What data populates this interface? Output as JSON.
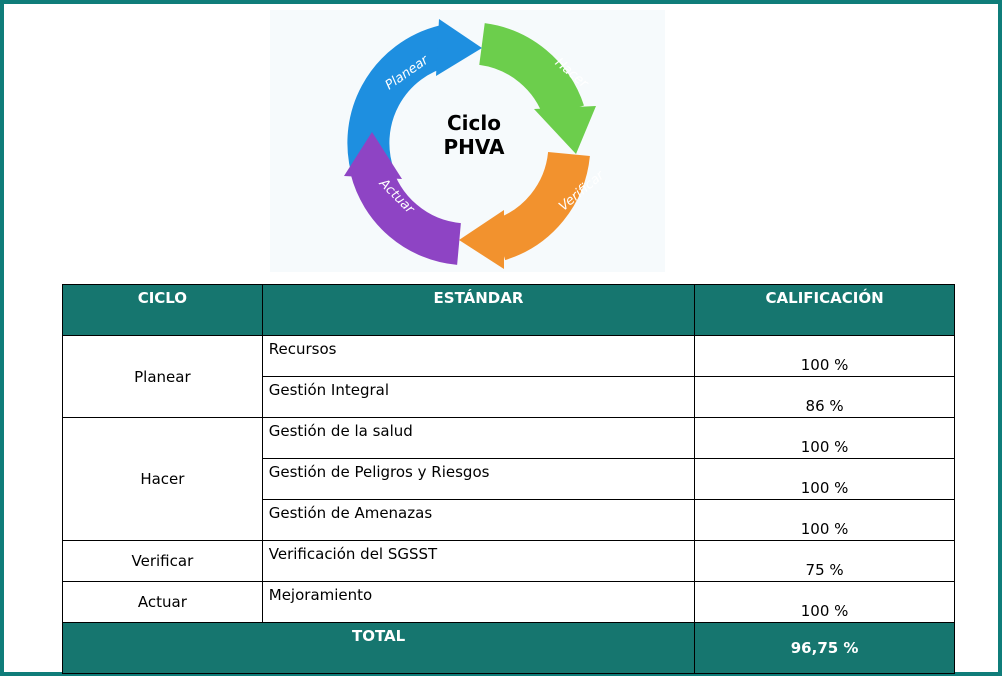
{
  "diagram": {
    "center": [
      "Ciclo",
      "PHVA"
    ],
    "steps": [
      "Planear",
      "Hacer",
      "Verificar",
      "Actuar"
    ]
  },
  "table": {
    "columns": [
      "CICLO",
      "ESTÁNDAR",
      "CALIFICACIÓN"
    ],
    "groups": [
      {
        "ciclo": "Planear",
        "rows": [
          [
            "Recursos",
            "100 %"
          ],
          [
            "Gestión Integral",
            "86 %"
          ]
        ]
      },
      {
        "ciclo": "Hacer",
        "rows": [
          [
            "Gestión de la salud",
            "100 %"
          ],
          [
            "Gestión de Peligros y Riesgos",
            "100 %"
          ],
          [
            "Gestión de Amenazas",
            "100 %"
          ]
        ]
      },
      {
        "ciclo": "Verificar",
        "rows": [
          [
            "Verificación del SGSST",
            "75 %"
          ]
        ]
      },
      {
        "ciclo": "Actuar",
        "rows": [
          [
            "Mejoramiento",
            "100 %"
          ]
        ]
      }
    ],
    "total": {
      "label": "TOTAL",
      "value": "96,75 %"
    }
  }
}
